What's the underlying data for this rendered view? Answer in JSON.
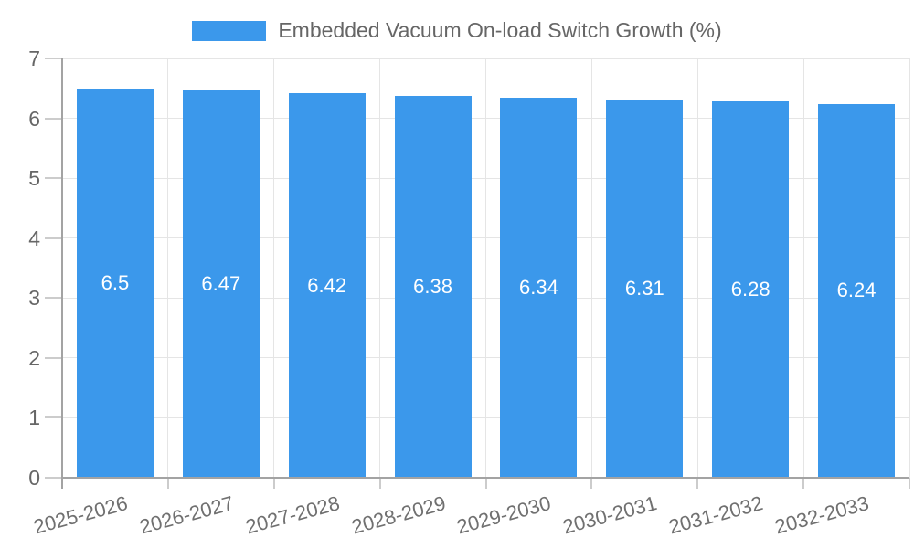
{
  "chart_data": {
    "type": "bar",
    "title": "",
    "legend_label": "Embedded Vacuum On-load Switch Growth (%)",
    "legend_position": "top",
    "categories": [
      "2025-2026",
      "2026-2027",
      "2027-2028",
      "2028-2029",
      "2029-2030",
      "2030-2031",
      "2031-2032",
      "2032-2033"
    ],
    "series": [
      {
        "name": "Embedded Vacuum On-load Switch Growth (%)",
        "values": [
          6.5,
          6.47,
          6.42,
          6.38,
          6.34,
          6.31,
          6.28,
          6.24
        ]
      }
    ],
    "bar_value_labels": [
      "6.5",
      "6.47",
      "6.42",
      "6.38",
      "6.34",
      "6.31",
      "6.28",
      "6.24"
    ],
    "xlabel": "",
    "ylabel": "",
    "ylim": [
      0,
      7
    ],
    "yticks": [
      0,
      1,
      2,
      3,
      4,
      5,
      6,
      7
    ],
    "grid": true,
    "x_label_rotation_deg": -15,
    "colors": {
      "bar": "#3B98EB",
      "bar_label": "#FFFFFF",
      "axis": "#A3A3A3",
      "tick": "#CCCCCC",
      "grid": "#E5E5E5",
      "y_label": "#666666",
      "x_label": "#707070",
      "legend_text": "#666666",
      "background": "#FFFFFF"
    }
  }
}
